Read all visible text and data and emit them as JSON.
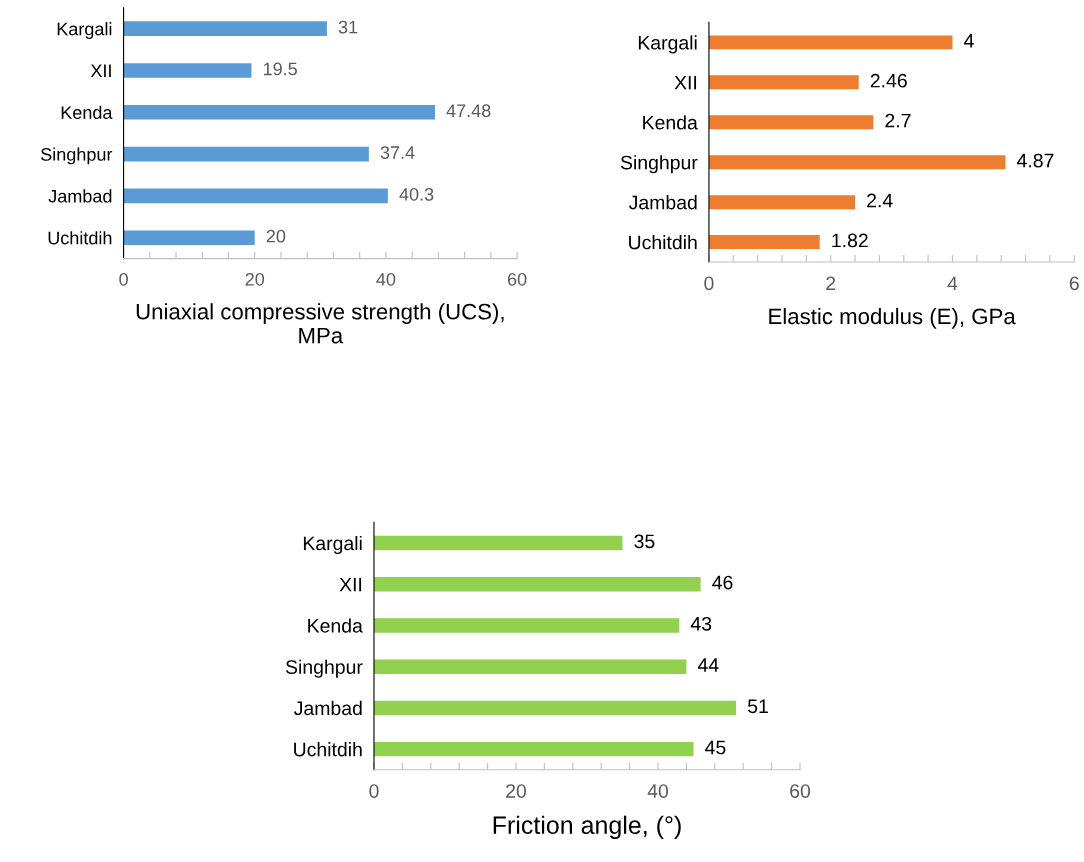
{
  "chart_data": [
    {
      "type": "bar",
      "orientation": "horizontal",
      "xlabel": "Uniaxial compressive strength (UCS),\nMPa",
      "categories": [
        "Kargali",
        "XII",
        "Kenda",
        "Singhpur",
        "Jambad",
        "Uchitdih"
      ],
      "values": [
        31,
        19.5,
        47.48,
        37.4,
        40.3,
        20
      ],
      "color": "#5b9bd5",
      "xlim": [
        0,
        60
      ],
      "xticks": [
        0,
        {
          "value": 4,
          "label": null
        },
        {
          "value": 8,
          "label": null
        },
        {
          "value": 12,
          "label": null
        },
        {
          "value": 16,
          "label": null
        },
        20,
        {
          "value": 24,
          "label": null
        },
        {
          "value": 28,
          "label": null
        },
        {
          "value": 32,
          "label": null
        },
        {
          "value": 36,
          "label": null
        },
        40,
        {
          "value": 44,
          "label": null
        },
        {
          "value": 48,
          "label": null
        },
        {
          "value": 52,
          "label": null
        },
        {
          "value": 56,
          "label": null
        },
        60
      ],
      "data_labels": true,
      "grid": false,
      "legend": false
    },
    {
      "type": "bar",
      "orientation": "horizontal",
      "xlabel": "Elastic modulus (E), GPa",
      "categories": [
        "Kargali",
        "XII",
        "Kenda",
        "Singhpur",
        "Jambad",
        "Uchitdih"
      ],
      "values": [
        4,
        2.46,
        2.7,
        4.87,
        2.4,
        1.82
      ],
      "color": "#ed7d31",
      "xlim": [
        0,
        6
      ],
      "xticks": [
        0,
        {
          "value": 0.4,
          "label": null
        },
        {
          "value": 0.8,
          "label": null
        },
        {
          "value": 1.2,
          "label": null
        },
        {
          "value": 1.6,
          "label": null
        },
        2,
        {
          "value": 2.4,
          "label": null
        },
        {
          "value": 2.8,
          "label": null
        },
        {
          "value": 3.2,
          "label": null
        },
        {
          "value": 3.6,
          "label": null
        },
        4,
        {
          "value": 4.4,
          "label": null
        },
        {
          "value": 4.8,
          "label": null
        },
        {
          "value": 5.2,
          "label": null
        },
        {
          "value": 5.6,
          "label": null
        },
        6
      ],
      "data_labels": true,
      "grid": false,
      "legend": false
    },
    {
      "type": "bar",
      "orientation": "horizontal",
      "xlabel": "Friction angle, (°)",
      "categories": [
        "Kargali",
        "XII",
        "Kenda",
        "Singhpur",
        "Jambad",
        "Uchitdih"
      ],
      "values": [
        35,
        46,
        43,
        44,
        51,
        45
      ],
      "color": "#92d050",
      "xlim": [
        0,
        60
      ],
      "xticks": [
        0,
        {
          "value": 4,
          "label": null
        },
        {
          "value": 8,
          "label": null
        },
        {
          "value": 12,
          "label": null
        },
        {
          "value": 16,
          "label": null
        },
        20,
        {
          "value": 24,
          "label": null
        },
        {
          "value": 28,
          "label": null
        },
        {
          "value": 32,
          "label": null
        },
        {
          "value": 36,
          "label": null
        },
        40,
        {
          "value": 44,
          "label": null
        },
        {
          "value": 48,
          "label": null
        },
        {
          "value": 52,
          "label": null
        },
        {
          "value": 56,
          "label": null
        },
        60
      ],
      "data_labels": true,
      "grid": false,
      "legend": false
    }
  ]
}
